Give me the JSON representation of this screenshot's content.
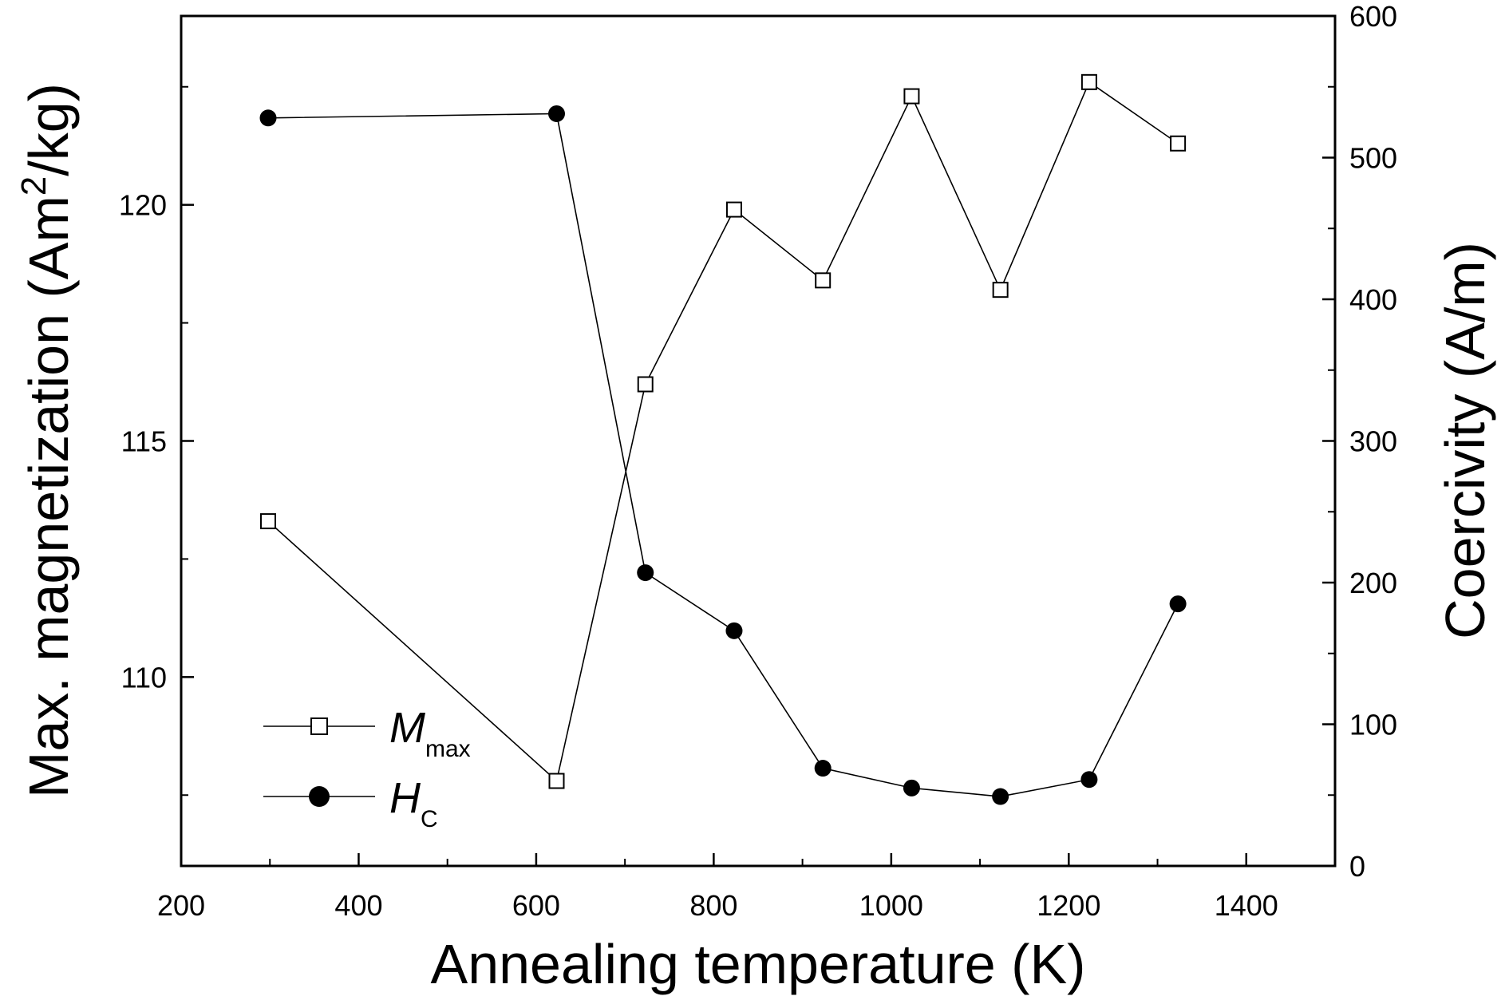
{
  "chart_data": {
    "type": "line",
    "xlabel": "Annealing temperature (K)",
    "ylabel_left": {
      "base": "Max. magnetization (Am",
      "sup": "2",
      "tail": "/kg)"
    },
    "ylabel_right": "Coercivity (A/m)",
    "xlim": [
      200,
      1500
    ],
    "ylim_left": [
      106,
      124
    ],
    "ylim_right": [
      0,
      600
    ],
    "x_ticks": [
      200,
      400,
      600,
      800,
      1000,
      1200,
      1400
    ],
    "y_left_ticks": [
      110,
      115,
      120
    ],
    "y_right_ticks": [
      0,
      100,
      200,
      300,
      400,
      500,
      600
    ],
    "legend_placement": "bottom-left",
    "series": [
      {
        "name": "M",
        "name_sub": "max",
        "axis": "left",
        "marker": "open-square",
        "x": [
          298,
          623,
          723,
          823,
          923,
          1023,
          1123,
          1223,
          1323
        ],
        "y": [
          113.3,
          107.8,
          116.2,
          119.9,
          118.4,
          122.3,
          118.2,
          122.6,
          121.3
        ]
      },
      {
        "name": "H",
        "name_sub": "C",
        "axis": "right",
        "marker": "filled-circle",
        "x": [
          298,
          623,
          723,
          823,
          923,
          1023,
          1123,
          1223,
          1323
        ],
        "y": [
          528,
          531,
          207,
          166,
          69,
          55,
          49,
          61,
          185
        ]
      }
    ]
  }
}
